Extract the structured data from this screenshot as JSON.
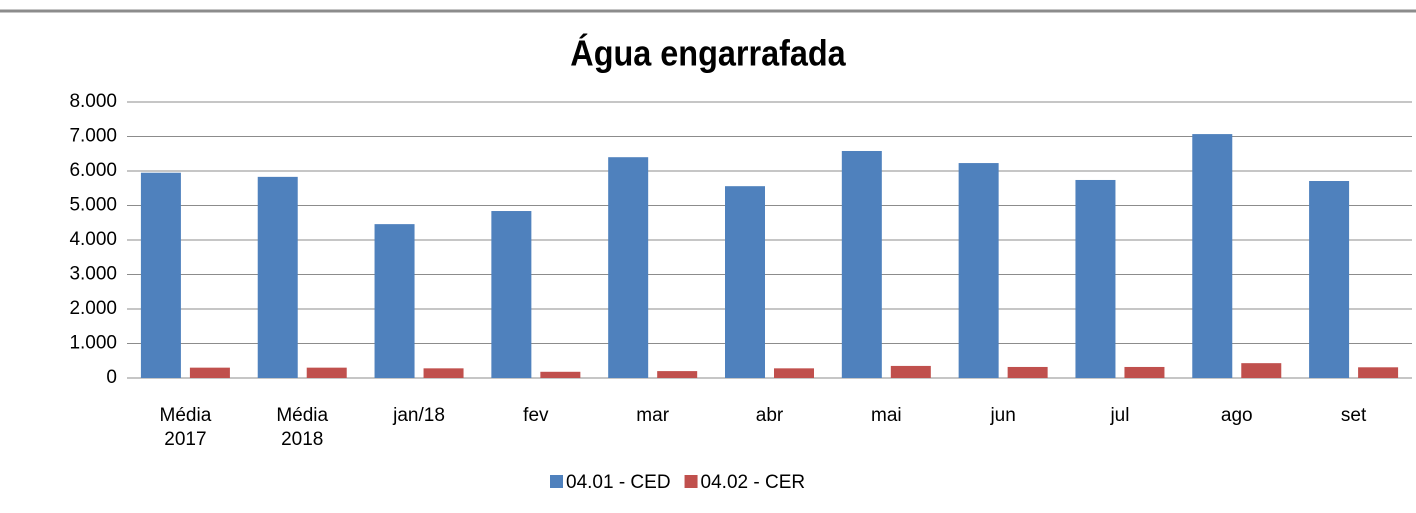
{
  "chart_data": {
    "type": "bar",
    "title": "Água engarrafada",
    "categories": [
      "Média 2017",
      "Média 2018",
      "jan/18",
      "fev",
      "mar",
      "abr",
      "mai",
      "jun",
      "jul",
      "ago",
      "set"
    ],
    "series": [
      {
        "name": "04.01 - CED",
        "color": "#4f81bd",
        "values": [
          5950,
          5830,
          4460,
          4840,
          6400,
          5560,
          6580,
          6230,
          5740,
          7070,
          5710
        ]
      },
      {
        "name": "04.02 - CER",
        "color": "#c0504d",
        "values": [
          300,
          300,
          280,
          180,
          200,
          280,
          350,
          320,
          320,
          430,
          310
        ]
      }
    ],
    "ylim": [
      0,
      8000
    ],
    "yticks": [
      0,
      {
        "value": 1000,
        "label": "1.000"
      },
      {
        "value": 2000,
        "label": "2.000"
      },
      {
        "value": 3000,
        "label": "3.000"
      },
      {
        "value": 4000,
        "label": "4.000"
      },
      {
        "value": 5000,
        "label": "5.000"
      },
      {
        "value": 6000,
        "label": "6.000"
      },
      {
        "value": 7000,
        "label": "7.000"
      },
      {
        "value": 8000,
        "label": "8.000"
      }
    ],
    "grid": true,
    "legend": "bottom"
  }
}
